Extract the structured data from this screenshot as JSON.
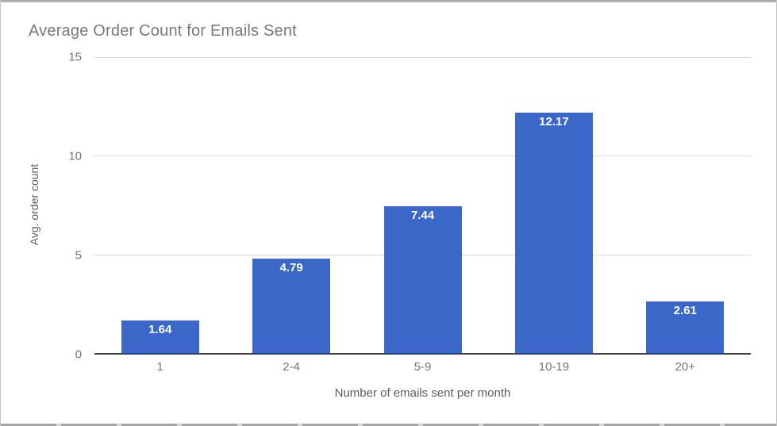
{
  "chart_data": {
    "type": "bar",
    "title": "Average Order Count for Emails Sent",
    "categories": [
      "1",
      "2-4",
      "5-9",
      "10-19",
      "20+"
    ],
    "values": [
      1.64,
      4.79,
      7.44,
      12.17,
      2.61
    ],
    "value_labels": [
      "1.64",
      "4.79",
      "7.44",
      "12.17",
      "2.61"
    ],
    "xlabel": "Number of emails sent per month",
    "ylabel": "Avg. order count",
    "ylim": [
      0,
      15
    ],
    "yticks": [
      0,
      5,
      10,
      15
    ],
    "grid": true,
    "legend": "none",
    "bar_color": "#3b67c8",
    "value_label_color": "#ffffff",
    "title_color": "#787878",
    "axis_text_color": "#757575"
  }
}
